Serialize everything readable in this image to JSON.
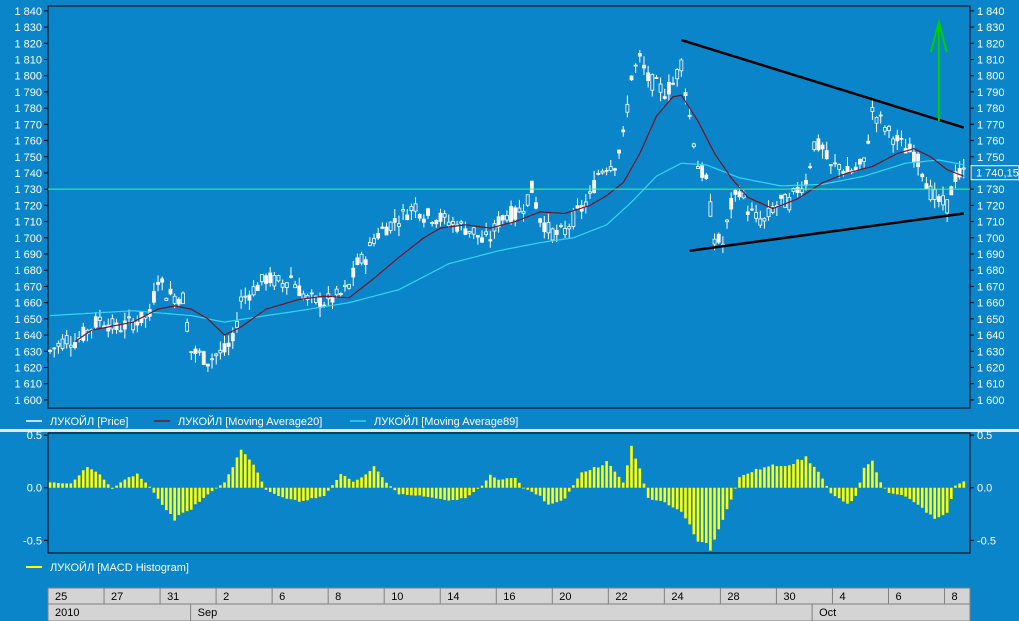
{
  "colors": {
    "background": "#0a85c9",
    "price": "#ffffff",
    "ma20": "#7a1020",
    "ma89": "#37d5f0",
    "histogram": "#ffff00",
    "level_line": "#39ff7a",
    "trendline": "#000000",
    "arrow": "#00d000",
    "date_bar": "#d4d4d4"
  },
  "chart_data": [
    {
      "type": "candlestick",
      "title": "",
      "ylim": [
        1595,
        1843
      ],
      "y_ticks": [
        "1 600",
        "1 610",
        "1 620",
        "1 630",
        "1 640",
        "1 650",
        "1 660",
        "1 670",
        "1 680",
        "1 690",
        "1 700",
        "1 710",
        "1 720",
        "1 730",
        "1 740",
        "1 750",
        "1 760",
        "1 770",
        "1 780",
        "1 790",
        "1 800",
        "1 810",
        "1 820",
        "1 830",
        "1 840"
      ],
      "y_tick_values": [
        1600,
        1610,
        1620,
        1630,
        1640,
        1650,
        1660,
        1670,
        1680,
        1690,
        1700,
        1710,
        1720,
        1730,
        1740,
        1750,
        1760,
        1770,
        1780,
        1790,
        1800,
        1810,
        1820,
        1830,
        1840
      ],
      "last_price_label": "1 740,15",
      "last_price_value": 1740.15,
      "level_line": 1730,
      "trendlines": [
        {
          "from": {
            "bar": 152,
            "value": 1822
          },
          "to": {
            "bar": 220,
            "value": 1768
          }
        },
        {
          "from": {
            "bar": 154,
            "value": 1692
          },
          "to": {
            "bar": 220,
            "value": 1715
          }
        }
      ],
      "arrow": {
        "bar": 214,
        "from": 1772,
        "to": 1833
      },
      "series": [
        {
          "name": "ЛУКОЙЛ [Price]",
          "label": "ЛУКОЙЛ [Price]",
          "anchors": [
            [
              0,
              1630
            ],
            [
              4,
              1638
            ],
            [
              6,
              1636
            ],
            [
              8,
              1640
            ],
            [
              12,
              1650
            ],
            [
              16,
              1644
            ],
            [
              20,
              1648
            ],
            [
              24,
              1652
            ],
            [
              26,
              1676
            ],
            [
              28,
              1666
            ],
            [
              30,
              1664
            ],
            [
              32,
              1663
            ],
            [
              34,
              1630
            ],
            [
              36,
              1628
            ],
            [
              38,
              1624
            ],
            [
              40,
              1628
            ],
            [
              42,
              1630
            ],
            [
              44,
              1636
            ],
            [
              46,
              1662
            ],
            [
              48,
              1666
            ],
            [
              52,
              1675
            ],
            [
              56,
              1672
            ],
            [
              58,
              1676
            ],
            [
              60,
              1668
            ],
            [
              62,
              1662
            ],
            [
              66,
              1660
            ],
            [
              70,
              1665
            ],
            [
              72,
              1670
            ],
            [
              74,
              1684
            ],
            [
              76,
              1688
            ],
            [
              78,
              1700
            ],
            [
              80,
              1705
            ],
            [
              84,
              1712
            ],
            [
              88,
              1720
            ],
            [
              90,
              1714
            ],
            [
              94,
              1712
            ],
            [
              98,
              1708
            ],
            [
              102,
              1704
            ],
            [
              104,
              1698
            ],
            [
              106,
              1700
            ],
            [
              108,
              1710
            ],
            [
              110,
              1715
            ],
            [
              112,
              1714
            ],
            [
              114,
              1720
            ],
            [
              116,
              1730
            ],
            [
              118,
              1712
            ],
            [
              120,
              1705
            ],
            [
              122,
              1702
            ],
            [
              124,
              1704
            ],
            [
              126,
              1712
            ],
            [
              128,
              1718
            ],
            [
              130,
              1725
            ],
            [
              132,
              1740
            ],
            [
              134,
              1745
            ],
            [
              136,
              1746
            ],
            [
              138,
              1762
            ],
            [
              140,
              1800
            ],
            [
              142,
              1810
            ],
            [
              144,
              1798
            ],
            [
              146,
              1794
            ],
            [
              148,
              1790
            ],
            [
              150,
              1795
            ],
            [
              152,
              1808
            ],
            [
              154,
              1775
            ],
            [
              156,
              1745
            ],
            [
              158,
              1735
            ],
            [
              160,
              1700
            ],
            [
              162,
              1696
            ],
            [
              164,
              1720
            ],
            [
              166,
              1730
            ],
            [
              168,
              1718
            ],
            [
              170,
              1712
            ],
            [
              172,
              1710
            ],
            [
              174,
              1718
            ],
            [
              176,
              1722
            ],
            [
              178,
              1722
            ],
            [
              180,
              1730
            ],
            [
              182,
              1735
            ],
            [
              184,
              1758
            ],
            [
              186,
              1755
            ],
            [
              188,
              1743
            ],
            [
              190,
              1745
            ],
            [
              192,
              1740
            ],
            [
              194,
              1742
            ],
            [
              196,
              1746
            ],
            [
              198,
              1778
            ],
            [
              200,
              1772
            ],
            [
              202,
              1765
            ],
            [
              204,
              1760
            ],
            [
              206,
              1755
            ],
            [
              208,
              1752
            ],
            [
              210,
              1742
            ],
            [
              212,
              1728
            ],
            [
              214,
              1722
            ],
            [
              216,
              1720
            ],
            [
              218,
              1738
            ],
            [
              220,
              1740
            ]
          ]
        },
        {
          "name": "ЛУКОЙЛ [Moving Average20]",
          "label": "ЛУКОЙЛ [Moving Average20]",
          "anchors": [
            [
              6,
              1636
            ],
            [
              10,
              1643
            ],
            [
              20,
              1648
            ],
            [
              26,
              1656
            ],
            [
              30,
              1658
            ],
            [
              34,
              1656
            ],
            [
              38,
              1650
            ],
            [
              42,
              1640
            ],
            [
              46,
              1645
            ],
            [
              52,
              1656
            ],
            [
              60,
              1662
            ],
            [
              66,
              1664
            ],
            [
              72,
              1663
            ],
            [
              78,
              1675
            ],
            [
              84,
              1688
            ],
            [
              90,
              1700
            ],
            [
              94,
              1706
            ],
            [
              100,
              1708
            ],
            [
              106,
              1706
            ],
            [
              112,
              1710
            ],
            [
              118,
              1716
            ],
            [
              124,
              1715
            ],
            [
              130,
              1720
            ],
            [
              134,
              1726
            ],
            [
              138,
              1734
            ],
            [
              142,
              1752
            ],
            [
              146,
              1775
            ],
            [
              150,
              1787
            ],
            [
              152,
              1788
            ],
            [
              156,
              1772
            ],
            [
              160,
              1752
            ],
            [
              164,
              1737
            ],
            [
              168,
              1725
            ],
            [
              174,
              1718
            ],
            [
              180,
              1724
            ],
            [
              186,
              1734
            ],
            [
              192,
              1740
            ],
            [
              198,
              1744
            ],
            [
              204,
              1752
            ],
            [
              208,
              1755
            ],
            [
              212,
              1750
            ],
            [
              216,
              1742
            ],
            [
              220,
              1738
            ]
          ]
        },
        {
          "name": "ЛУКОЙЛ [Moving Average89]",
          "label": "ЛУКОЙЛ [Moving Average89]",
          "anchors": [
            [
              0,
              1652
            ],
            [
              20,
              1655
            ],
            [
              34,
              1652
            ],
            [
              42,
              1648
            ],
            [
              52,
              1652
            ],
            [
              60,
              1655
            ],
            [
              72,
              1660
            ],
            [
              84,
              1668
            ],
            [
              96,
              1684
            ],
            [
              108,
              1692
            ],
            [
              118,
              1697
            ],
            [
              126,
              1700
            ],
            [
              134,
              1708
            ],
            [
              140,
              1722
            ],
            [
              146,
              1738
            ],
            [
              152,
              1746
            ],
            [
              158,
              1745
            ],
            [
              166,
              1737
            ],
            [
              176,
              1732
            ],
            [
              186,
              1733
            ],
            [
              196,
              1738
            ],
            [
              206,
              1746
            ],
            [
              214,
              1748
            ],
            [
              220,
              1745
            ]
          ]
        }
      ]
    },
    {
      "type": "bar",
      "series_name": "ЛУКОЙЛ [MACD Histogram]",
      "ylim": [
        -0.62,
        0.52
      ],
      "y_ticks": [
        "0.5",
        "0.0",
        "-0.5"
      ],
      "y_tick_values": [
        0.5,
        0.0,
        -0.5
      ],
      "anchors": [
        [
          0,
          0.05
        ],
        [
          5,
          0.04
        ],
        [
          9,
          0.2
        ],
        [
          12,
          0.12
        ],
        [
          15,
          -0.01
        ],
        [
          18,
          0.08
        ],
        [
          21,
          0.13
        ],
        [
          24,
          0.01
        ],
        [
          27,
          -0.16
        ],
        [
          30,
          -0.3
        ],
        [
          34,
          -0.2
        ],
        [
          38,
          -0.06
        ],
        [
          42,
          0.05
        ],
        [
          46,
          0.35
        ],
        [
          49,
          0.22
        ],
        [
          52,
          -0.02
        ],
        [
          55,
          -0.08
        ],
        [
          60,
          -0.13
        ],
        [
          66,
          -0.08
        ],
        [
          70,
          0.13
        ],
        [
          73,
          0.06
        ],
        [
          76,
          0.12
        ],
        [
          78,
          0.2
        ],
        [
          81,
          0.05
        ],
        [
          84,
          -0.06
        ],
        [
          90,
          -0.08
        ],
        [
          96,
          -0.12
        ],
        [
          100,
          -0.1
        ],
        [
          104,
          0.02
        ],
        [
          106,
          0.12
        ],
        [
          108,
          0.08
        ],
        [
          112,
          0.09
        ],
        [
          114,
          0.0
        ],
        [
          118,
          -0.08
        ],
        [
          120,
          -0.17
        ],
        [
          124,
          -0.1
        ],
        [
          128,
          0.15
        ],
        [
          132,
          0.2
        ],
        [
          134,
          0.25
        ],
        [
          136,
          0.15
        ],
        [
          138,
          0.05
        ],
        [
          140,
          0.38
        ],
        [
          142,
          0.18
        ],
        [
          144,
          -0.1
        ],
        [
          148,
          -0.14
        ],
        [
          152,
          -0.22
        ],
        [
          156,
          -0.5
        ],
        [
          159,
          -0.58
        ],
        [
          162,
          -0.32
        ],
        [
          166,
          0.1
        ],
        [
          170,
          0.17
        ],
        [
          174,
          0.21
        ],
        [
          178,
          0.22
        ],
        [
          182,
          0.29
        ],
        [
          185,
          0.15
        ],
        [
          188,
          -0.05
        ],
        [
          192,
          -0.16
        ],
        [
          194,
          -0.08
        ],
        [
          196,
          0.18
        ],
        [
          198,
          0.25
        ],
        [
          200,
          0.05
        ],
        [
          202,
          -0.05
        ],
        [
          206,
          -0.08
        ],
        [
          210,
          -0.2
        ],
        [
          213,
          -0.3
        ],
        [
          216,
          -0.24
        ],
        [
          218,
          0.02
        ],
        [
          220,
          0.06
        ]
      ]
    }
  ],
  "legend": {
    "price": "ЛУКОЙЛ [Price]",
    "ma20": "ЛУКОЙЛ [Moving Average20]",
    "ma89": "ЛУКОЙЛ [Moving Average89]",
    "macd": "ЛУКОЙЛ [MACD Histogram]"
  },
  "date_axis": {
    "days": [
      {
        "label": "25",
        "bar": 0
      },
      {
        "label": "27",
        "bar": 11
      },
      {
        "label": "31",
        "bar": 22
      },
      {
        "label": "2",
        "bar": 33
      },
      {
        "label": "6",
        "bar": 44
      },
      {
        "label": "8",
        "bar": 55
      },
      {
        "label": "10",
        "bar": 66
      },
      {
        "label": "14",
        "bar": 77
      },
      {
        "label": "16",
        "bar": 88
      },
      {
        "label": "20",
        "bar": 99
      },
      {
        "label": "22",
        "bar": 110
      },
      {
        "label": "24",
        "bar": 121
      },
      {
        "label": "28",
        "bar": 132
      },
      {
        "label": "30",
        "bar": 143
      },
      {
        "label": "4",
        "bar": 154
      },
      {
        "label": "6",
        "bar": 165
      },
      {
        "label": "8",
        "bar": 176
      }
    ],
    "periods": [
      {
        "label": "2010",
        "bar": 0
      },
      {
        "label": "Sep",
        "bar": 28
      },
      {
        "label": "Oct",
        "bar": 150
      }
    ]
  }
}
